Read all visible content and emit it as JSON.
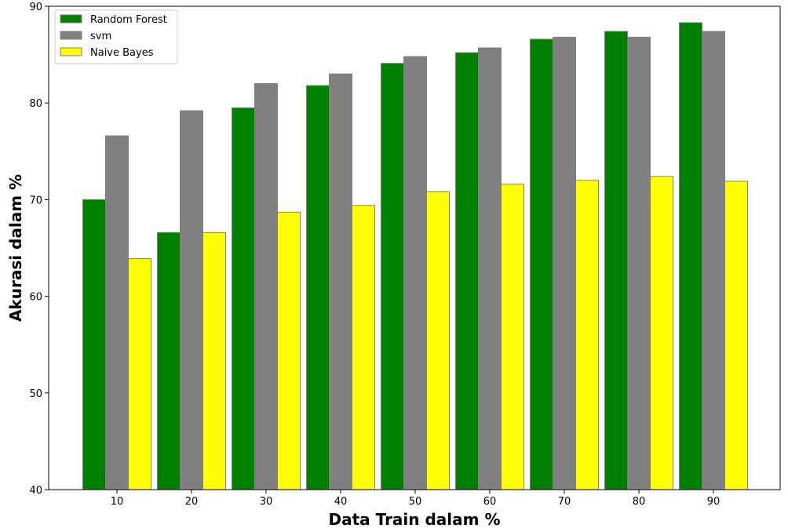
{
  "chart_data": {
    "type": "bar",
    "title": "",
    "xlabel": "Data Train dalam %",
    "ylabel": "Akurasi dalam %",
    "categories": [
      "10",
      "20",
      "30",
      "40",
      "50",
      "60",
      "70",
      "80",
      "90"
    ],
    "ylim": [
      40,
      90
    ],
    "yticks": [
      "40",
      "50",
      "60",
      "70",
      "80",
      "90"
    ],
    "grid": false,
    "legend_position": "top-left",
    "series": [
      {
        "name": "Random Forest",
        "color": "#008000",
        "values": [
          70.0,
          66.6,
          79.5,
          81.8,
          84.1,
          85.2,
          86.6,
          87.4,
          88.3
        ]
      },
      {
        "name": "svm",
        "color": "#808080",
        "values": [
          76.6,
          79.2,
          82.0,
          83.0,
          84.8,
          85.7,
          86.8,
          86.8,
          87.4
        ]
      },
      {
        "name": "Naive Bayes",
        "color": "#ffff00",
        "values": [
          63.9,
          66.6,
          68.7,
          69.4,
          70.8,
          71.6,
          72.0,
          72.4,
          71.9
        ]
      }
    ]
  }
}
